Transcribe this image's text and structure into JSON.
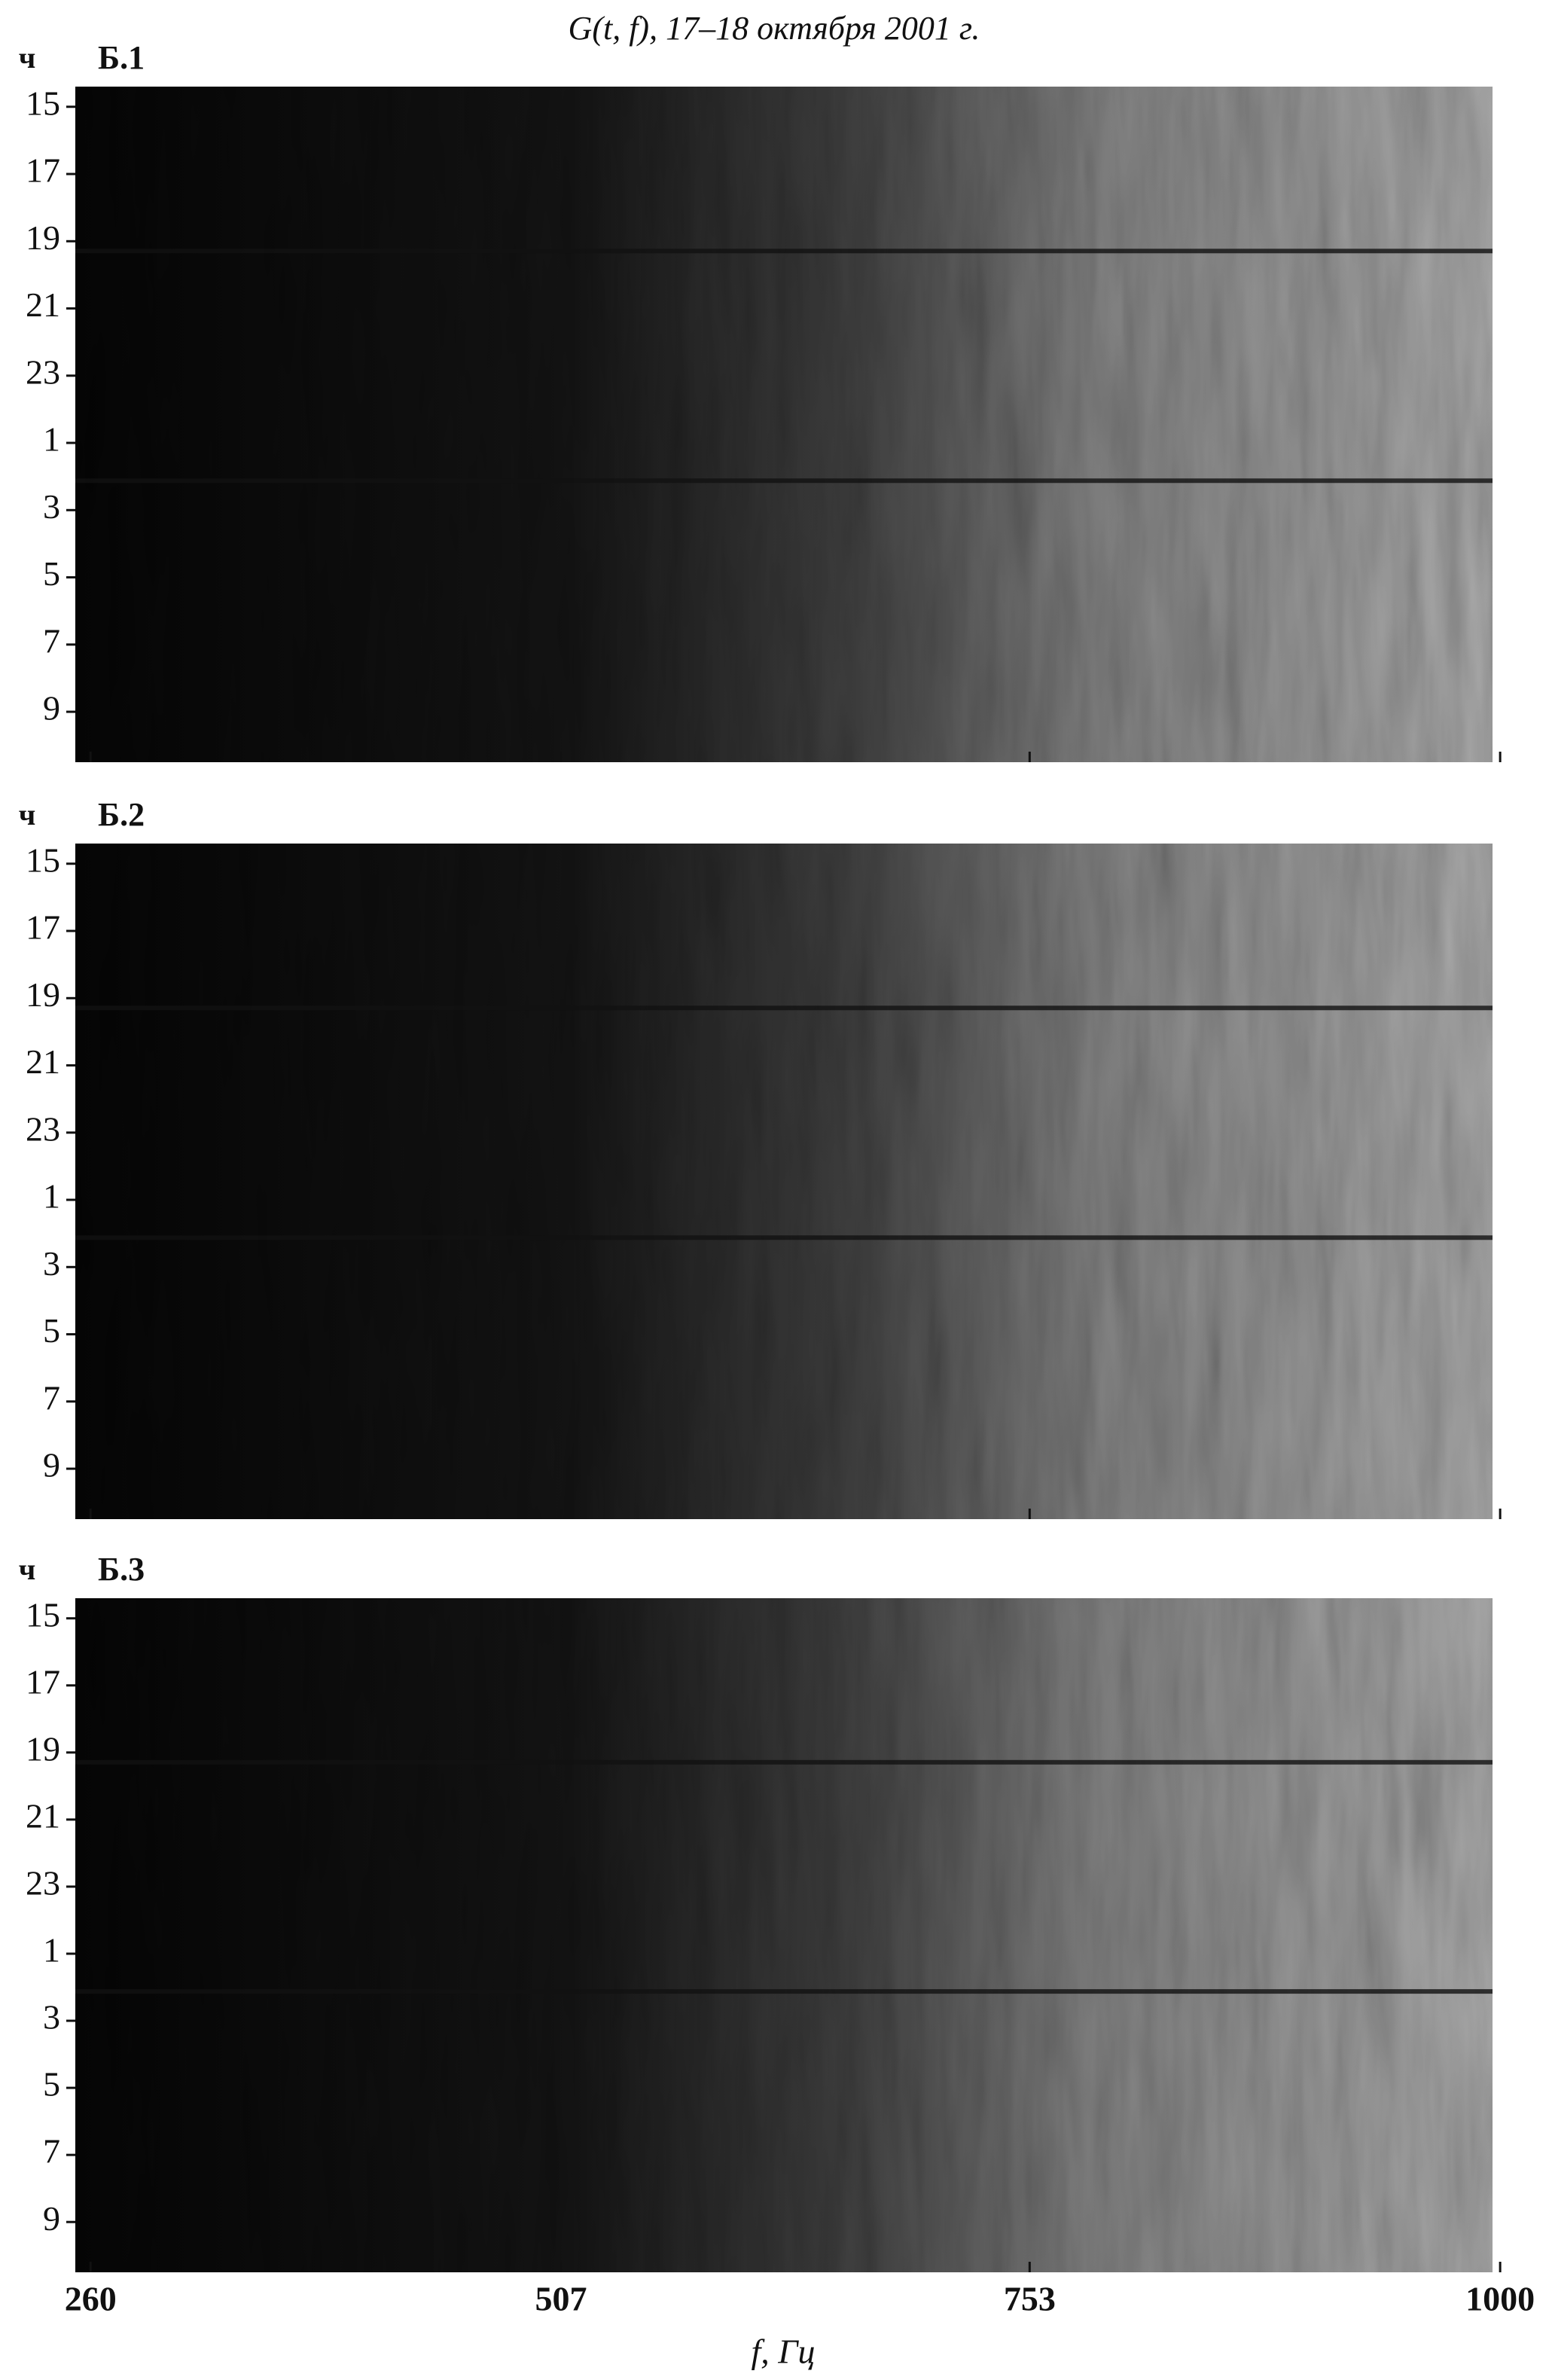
{
  "chart_data": [
    {
      "type": "heatmap",
      "title": "G(t, f), 17–18 октября 2001 г.",
      "label": "Б.1",
      "y_unit": "ч",
      "ylim": [
        14.4,
        34.5
      ],
      "yticks": [
        15,
        17,
        19,
        21,
        23,
        {
          "value": 25,
          "label": "1"
        },
        {
          "value": 27,
          "label": "3"
        },
        {
          "value": 29,
          "label": "5"
        },
        {
          "value": 31,
          "label": "7"
        },
        {
          "value": 33,
          "label": "9"
        }
      ]
    },
    {
      "type": "heatmap",
      "label": "Б.2",
      "y_unit": "ч",
      "ylim": [
        14.4,
        34.5
      ],
      "yticks": [
        15,
        17,
        19,
        21,
        23,
        {
          "value": 25,
          "label": "1"
        },
        {
          "value": 27,
          "label": "3"
        },
        {
          "value": 29,
          "label": "5"
        },
        {
          "value": 31,
          "label": "7"
        },
        {
          "value": 33,
          "label": "9"
        }
      ]
    },
    {
      "type": "heatmap",
      "label": "Б.3",
      "y_unit": "ч",
      "x_label": "f, Гц",
      "ylim": [
        14.4,
        34.5
      ],
      "yticks": [
        15,
        17,
        19,
        21,
        23,
        {
          "value": 25,
          "label": "1"
        },
        {
          "value": 27,
          "label": "3"
        },
        {
          "value": 29,
          "label": "5"
        },
        {
          "value": 31,
          "label": "7"
        },
        {
          "value": 33,
          "label": "9"
        }
      ],
      "xlim": [
        252,
        996
      ],
      "xticks": [
        260,
        507,
        753,
        1000
      ]
    }
  ]
}
